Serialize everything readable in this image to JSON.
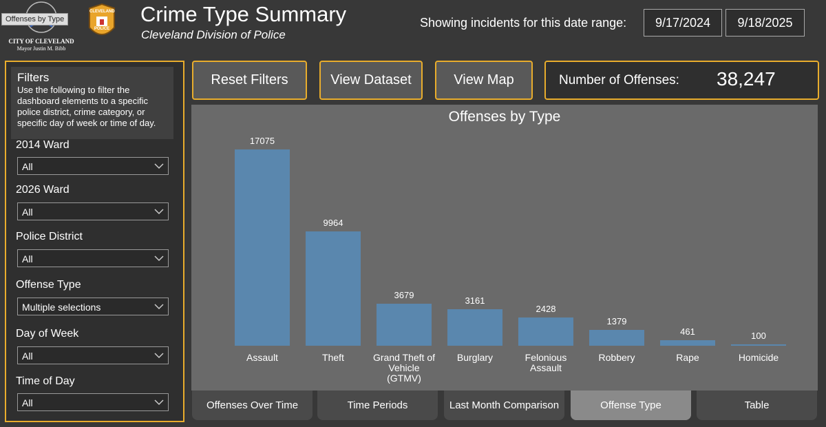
{
  "header": {
    "tooltip": "Offenses by Type",
    "city_logo": [
      "CITY OF CLEVELAND",
      "Mayor Justin M. Bibb"
    ],
    "badge": [
      "CLEVELAND",
      "POLICE"
    ],
    "title": "Crime Type Summary",
    "subtitle": "Cleveland Division of Police",
    "date_range_label": "Showing incidents for this date range:",
    "start_date": "9/17/2024",
    "end_date": "9/18/2025"
  },
  "filters": {
    "title": "Filters",
    "description": "Use the following to filter the dashboard elements to a specific police district, crime category, or specific day of week or time of day.",
    "fields": [
      {
        "label": "2014 Ward",
        "value": "All"
      },
      {
        "label": "2026 Ward",
        "value": "All"
      },
      {
        "label": "Police District",
        "value": "All"
      },
      {
        "label": "Offense Type",
        "value": "Multiple selections"
      },
      {
        "label": "Day of Week",
        "value": "All"
      },
      {
        "label": "Time of Day",
        "value": "All"
      }
    ]
  },
  "buttons": [
    "Reset Filters",
    "View Dataset",
    "View Map"
  ],
  "kpi": {
    "label": "Number of Offenses:",
    "value": "38,247"
  },
  "chart_data": {
    "type": "bar",
    "title": "Offenses by Type",
    "categories": [
      "Assault",
      "Theft",
      "Grand Theft of Vehicle (GTMV)",
      "Burglary",
      "Felonious Assault",
      "Robbery",
      "Rape",
      "Homicide"
    ],
    "values": [
      17075,
      9964,
      3679,
      3161,
      2428,
      1379,
      461,
      100
    ],
    "color": "#5a87ae"
  },
  "tabs": [
    "Offenses Over Time",
    "Time Periods",
    "Last Month Comparison",
    "Offense Type",
    "Table"
  ],
  "active_tab": 3
}
